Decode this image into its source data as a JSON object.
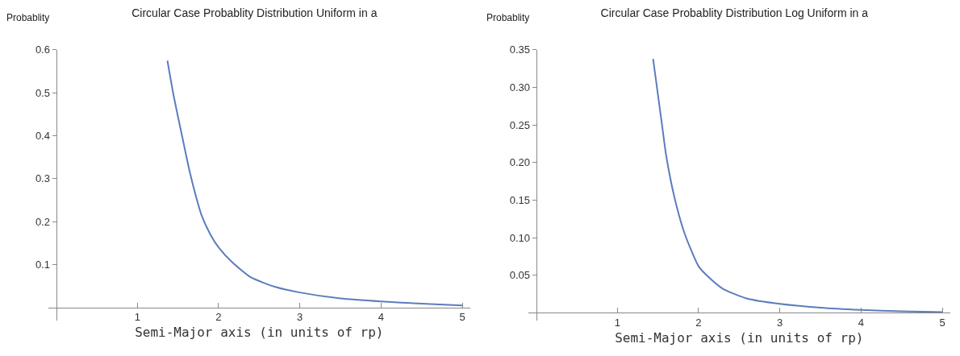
{
  "chart_data": [
    {
      "type": "line",
      "title": "Circular Case Probablity Distribution Uniform in a",
      "xlabel": "Semi-Major axis (in units of rp)",
      "ylabel": "Probablity",
      "xlim": [
        -0.1,
        5.1
      ],
      "ylim": [
        -0.03,
        0.6
      ],
      "xticks": [
        1,
        2,
        3,
        4,
        5
      ],
      "yticks": [
        0.1,
        0.2,
        0.3,
        0.4,
        0.5,
        0.6
      ],
      "grid": false,
      "marker": "none",
      "line_style": "solid",
      "series": [
        {
          "color": "#5b7dbd",
          "x": [
            1.37,
            1.45,
            1.55,
            1.64,
            1.72,
            1.79,
            1.9,
            2.0,
            2.17,
            2.4,
            2.7,
            3.0,
            3.5,
            4.0,
            4.5,
            5.0
          ],
          "values": [
            0.575,
            0.49,
            0.4,
            0.32,
            0.26,
            0.215,
            0.17,
            0.14,
            0.105,
            0.07,
            0.048,
            0.035,
            0.021,
            0.014,
            0.009,
            0.005
          ]
        }
      ]
    },
    {
      "type": "line",
      "title": "Circular Case Probablity Distribution Log Uniform in a",
      "xlabel": "Semi-Major axis (in units of rp)",
      "ylabel": "Probablity",
      "xlim": [
        -0.1,
        5.1
      ],
      "ylim": [
        -0.01,
        0.35
      ],
      "xticks": [
        1,
        2,
        3,
        4,
        5
      ],
      "yticks": [
        0.05,
        {
          "value": 0.1,
          "label": "0.10"
        },
        0.15,
        {
          "value": 0.2,
          "label": "0.20"
        },
        0.25,
        {
          "value": 0.3,
          "label": "0.30"
        },
        0.35
      ],
      "grid": false,
      "marker": "none",
      "line_style": "solid",
      "series": [
        {
          "color": "#5b7dbd",
          "x": [
            1.44,
            1.5,
            1.55,
            1.6,
            1.7,
            1.83,
            2.0,
            2.1,
            2.3,
            2.6,
            3.0,
            3.5,
            4.0,
            4.5,
            5.0
          ],
          "values": [
            0.338,
            0.29,
            0.25,
            0.21,
            0.155,
            0.105,
            0.062,
            0.05,
            0.032,
            0.019,
            0.012,
            0.007,
            0.004,
            0.002,
            0.001
          ]
        }
      ]
    }
  ]
}
